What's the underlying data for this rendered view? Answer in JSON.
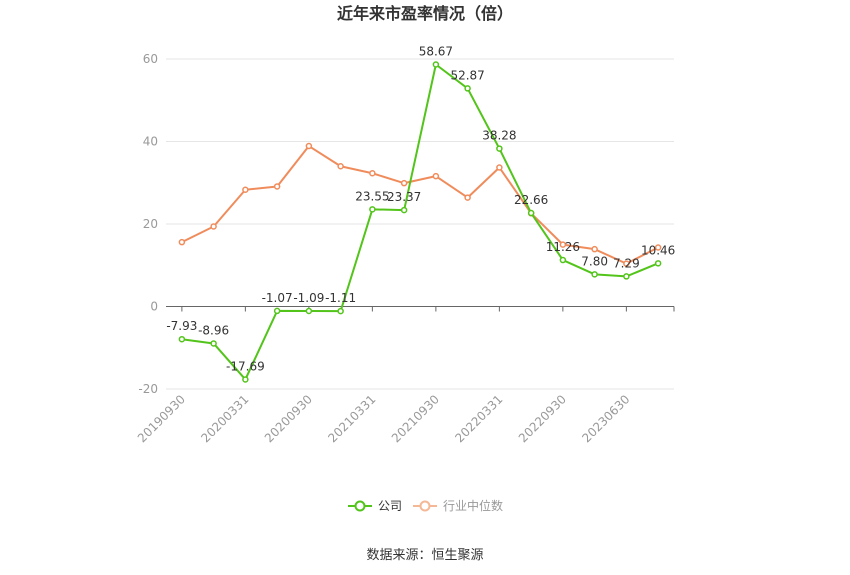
{
  "title": "近年来市盈率情况（倍）",
  "source": "数据来源：恒生聚源",
  "colors": {
    "company": "#52c41a",
    "industry": "#f08c5c",
    "grid": "#e6e6e6",
    "axis": "#666666"
  },
  "chart_data": {
    "type": "line",
    "title": "近年来市盈率情况（倍）",
    "xlabel": "",
    "ylabel": "",
    "ylim": [
      -20,
      60
    ],
    "yticks": [
      -20,
      0,
      20,
      40,
      60
    ],
    "grid": true,
    "legend_position": "bottom",
    "x_tick_labels": [
      "20190930",
      "20200331",
      "20200930",
      "20210331",
      "20210930",
      "20220331",
      "20220930",
      "20230630"
    ],
    "n_points": 16,
    "series": [
      {
        "name": "公司",
        "color": "#52c41a",
        "values": [
          -7.93,
          -8.96,
          -17.69,
          -1.07,
          -1.09,
          -1.11,
          23.55,
          23.37,
          58.67,
          52.87,
          38.28,
          22.66,
          11.26,
          7.8,
          7.29,
          10.46
        ],
        "labels": [
          "-7.93",
          "-8.96",
          "-17.69",
          "-1.07",
          "-1.09",
          "-1.11",
          "23.55",
          "23.37",
          "58.67",
          "52.87",
          "38.28",
          "22.66",
          "11.26",
          "7.80",
          "7.29",
          "10.46"
        ]
      },
      {
        "name": "行业中位数",
        "color": "#f08c5c",
        "values": [
          15.6,
          19.4,
          28.3,
          29.1,
          38.9,
          34.0,
          32.3,
          29.9,
          31.6,
          26.4,
          33.7,
          22.6,
          15.0,
          13.9,
          10.4,
          14.3
        ]
      }
    ]
  }
}
